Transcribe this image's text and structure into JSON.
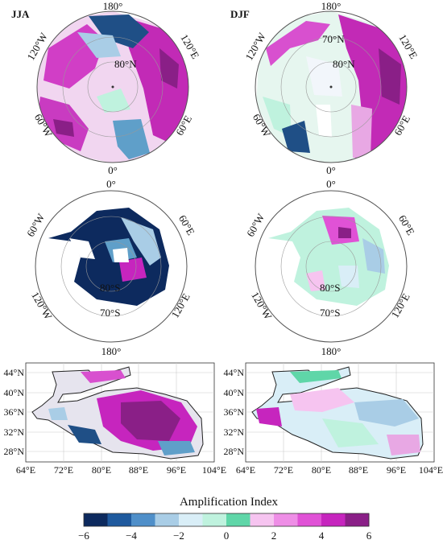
{
  "panels": [
    {
      "season": "JJA"
    },
    {
      "season": "DJF"
    }
  ],
  "arctic_labels": {
    "top": "180°",
    "upper_left": "120°W",
    "upper_right": "120°E",
    "lower_left": "60°W",
    "lower_right": "60°E",
    "bottom": "0°",
    "lat_ring": "80°N",
    "lat_ring2": "70°N"
  },
  "antarctic_labels": {
    "top": "0°",
    "upper_left": "60°W",
    "upper_right": "60°E",
    "lower_left": "120°W",
    "lower_right": "120°E",
    "bottom": "180°",
    "lat_ring": "80°S",
    "lat_ring2": "70°S"
  },
  "tp_map": {
    "lat_ticks": [
      "44°N",
      "40°N",
      "36°N",
      "32°N",
      "28°N"
    ],
    "lon_ticks": [
      "64°E",
      "72°E",
      "80°E",
      "88°E",
      "96°E",
      "104°E"
    ]
  },
  "colorbar": {
    "title": "Amplification Index",
    "tick_labels": [
      "−6",
      "−4",
      "−2",
      "0",
      "2",
      "4",
      "6"
    ],
    "colors": [
      "#0d2a5e",
      "#1f5a9e",
      "#4f8fc9",
      "#a9cde6",
      "#d9eef7",
      "#bff2de",
      "#5fd6a8",
      "#f6c4f0",
      "#ee8ee6",
      "#e052d6",
      "#c625be",
      "#8a1f87"
    ]
  }
}
